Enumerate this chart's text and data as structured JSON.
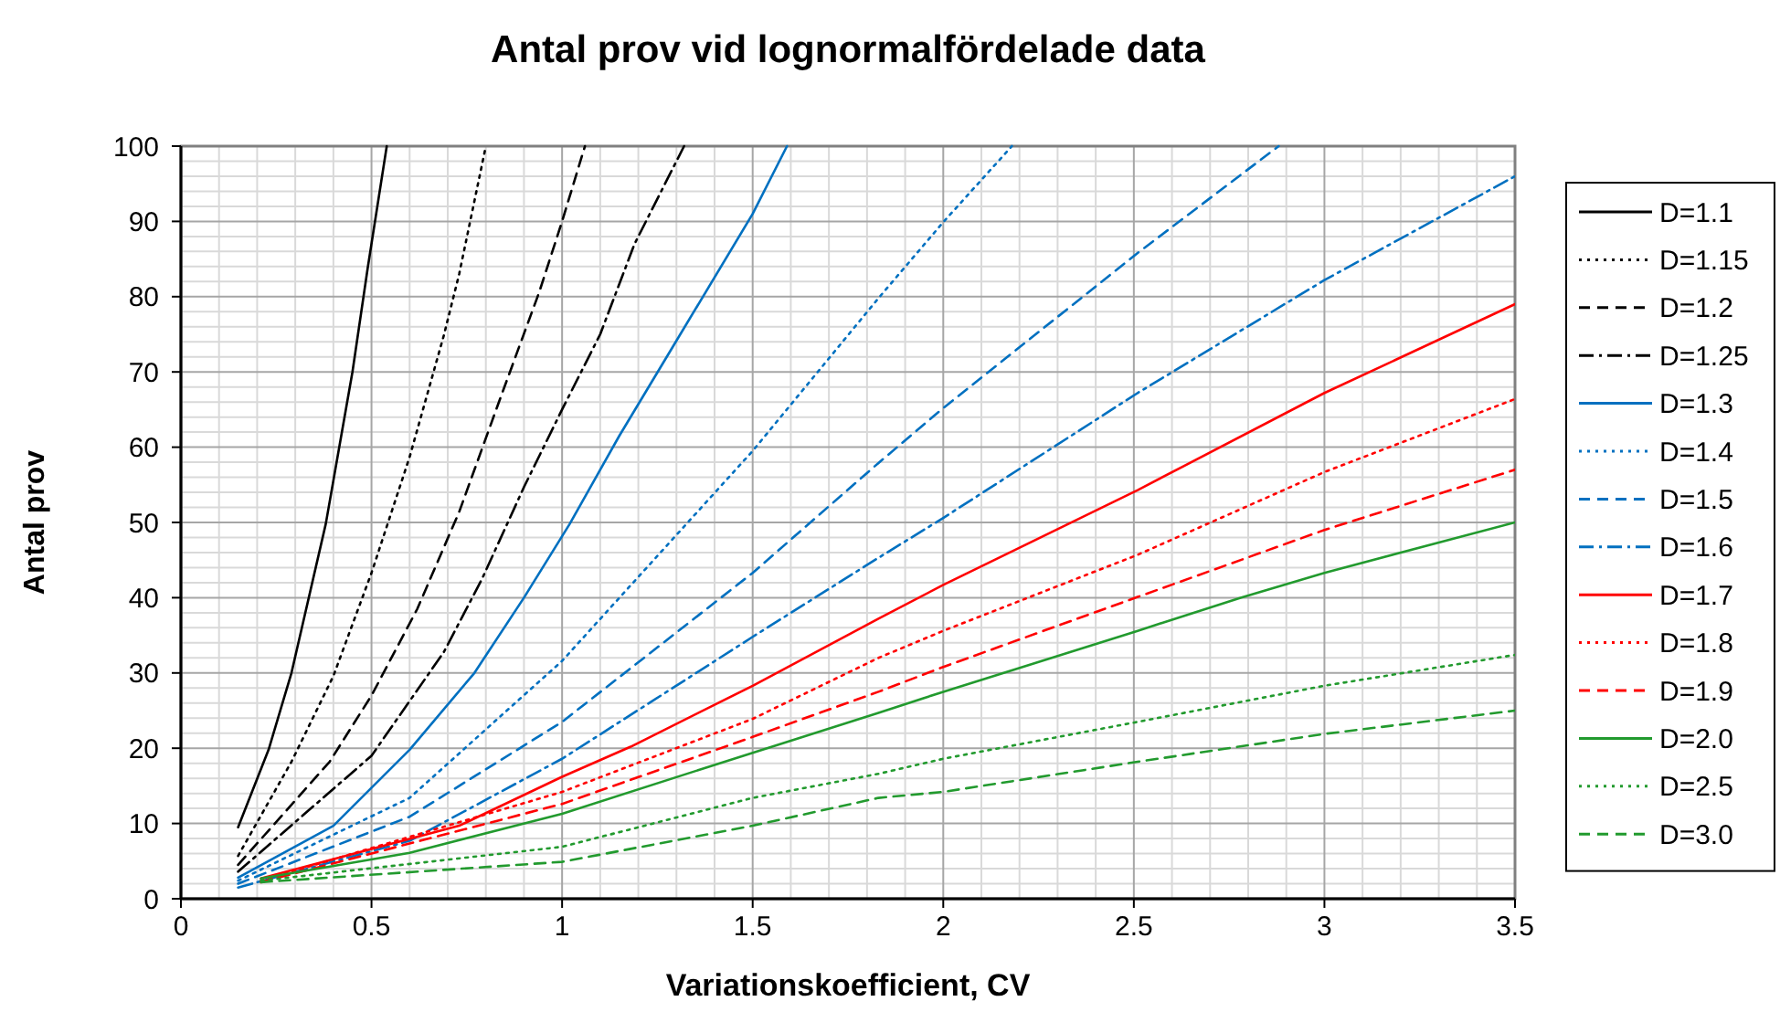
{
  "chart_data": {
    "type": "line",
    "title": "Antal prov vid lognormalfördelade data",
    "xlabel": "Variationskoefficient, CV",
    "ylabel": "Antal prov",
    "xlim": [
      0,
      3.5
    ],
    "ylim": [
      0,
      100
    ],
    "xticks": [
      0,
      0.5,
      1,
      1.5,
      2,
      2.5,
      3,
      3.5
    ],
    "yticks": [
      0,
      10,
      20,
      30,
      40,
      50,
      60,
      70,
      80,
      90,
      100
    ],
    "grid": true,
    "legend": "right",
    "series": [
      {
        "name": "D=1.1",
        "color": "#000000",
        "line_style": "solid",
        "x": [
          0.15,
          0.23,
          0.29,
          0.38,
          0.45,
          0.49,
          0.54
        ],
        "values": [
          9.5,
          19.8,
          30,
          49.8,
          70,
          83.8,
          100
        ]
      },
      {
        "name": "D=1.15",
        "color": "#000000",
        "line_style": "dotted",
        "x": [
          0.15,
          0.29,
          0.4,
          0.5,
          0.6,
          0.69,
          0.73,
          0.8
        ],
        "values": [
          5.7,
          18.2,
          29.6,
          43.3,
          58.7,
          74.9,
          83,
          100
        ]
      },
      {
        "name": "D=1.2",
        "color": "#000000",
        "line_style": "dashed",
        "x": [
          0.15,
          0.39,
          0.5,
          0.62,
          0.73,
          0.84,
          0.94,
          1,
          1.06
        ],
        "values": [
          4.5,
          18.2,
          27,
          38.5,
          51.4,
          66.8,
          80.6,
          90,
          100
        ]
      },
      {
        "name": "D=1.25",
        "color": "#000000",
        "line_style": "dashdot",
        "x": [
          0.15,
          0.5,
          0.69,
          0.79,
          0.9,
          1,
          1.1,
          1.19,
          1.32
        ],
        "values": [
          3.6,
          19,
          32.8,
          42.5,
          54.7,
          65,
          75,
          87,
          100
        ]
      },
      {
        "name": "D=1.3",
        "color": "#0070c0",
        "line_style": "solid",
        "x": [
          0.15,
          0.4,
          0.6,
          0.77,
          0.9,
          1.02,
          1.15,
          1.29,
          1.5,
          1.59
        ],
        "values": [
          2.8,
          9.7,
          19.8,
          30,
          40,
          49.8,
          61.5,
          73.3,
          91,
          100
        ]
      },
      {
        "name": "D=1.4",
        "color": "#0070c0",
        "line_style": "dotted",
        "x": [
          0.15,
          0.6,
          1,
          1.5,
          1.83,
          2,
          2.18
        ],
        "values": [
          2.4,
          13.4,
          31.6,
          59.5,
          79.8,
          89.9,
          100
        ]
      },
      {
        "name": "D=1.5",
        "color": "#0070c0",
        "line_style": "dashed",
        "x": [
          0.15,
          0.6,
          1,
          1.5,
          1.83,
          2,
          2.51,
          2.88
        ],
        "values": [
          2,
          10.9,
          23.5,
          43.3,
          57.9,
          65.2,
          85.8,
          100
        ]
      },
      {
        "name": "D=1.6",
        "color": "#0070c0",
        "line_style": "dashdot",
        "x": [
          0.15,
          0.6,
          1,
          1.5,
          1.83,
          2,
          2.51,
          3,
          3.5
        ],
        "values": [
          1.5,
          7.7,
          18.6,
          34.8,
          45.3,
          50.6,
          67.2,
          82.2,
          96
        ]
      },
      {
        "name": "D=1.7",
        "color": "#ff0000",
        "line_style": "solid",
        "x": [
          0.21,
          0.73,
          1,
          1.18,
          1.5,
          1.83,
          2,
          2.51,
          3,
          3.5
        ],
        "values": [
          2.7,
          9.7,
          16.2,
          20.2,
          28.3,
          37.2,
          41.7,
          54.3,
          67.2,
          79
        ]
      },
      {
        "name": "D=1.8",
        "color": "#ff0000",
        "line_style": "dotted",
        "x": [
          0.21,
          1,
          1.5,
          1.83,
          2,
          2.51,
          3,
          3.5
        ],
        "values": [
          2.4,
          14.2,
          23.9,
          32,
          35.6,
          45.7,
          56.7,
          66.4
        ]
      },
      {
        "name": "D=1.9",
        "color": "#ff0000",
        "line_style": "dashed",
        "x": [
          0.21,
          1,
          1.5,
          1.83,
          2,
          2.51,
          3,
          3.5
        ],
        "values": [
          2.2,
          12.6,
          21.5,
          27.5,
          30.8,
          40.1,
          49,
          57
        ]
      },
      {
        "name": "D=2.0",
        "color": "#229a2e",
        "line_style": "solid",
        "x": [
          0.21,
          0.6,
          1,
          1.5,
          1.83,
          2,
          2.51,
          2.78,
          3,
          3.5
        ],
        "values": [
          2.7,
          6.1,
          11.3,
          19.4,
          24.7,
          27.5,
          35.6,
          40,
          43.3,
          50
        ]
      },
      {
        "name": "D=2.5",
        "color": "#229a2e",
        "line_style": "dotted",
        "x": [
          0.21,
          1,
          1.5,
          1.83,
          2,
          2.51,
          3,
          3.5
        ],
        "values": [
          2.4,
          6.9,
          13.4,
          16.6,
          18.6,
          23.5,
          28.3,
          32.4
        ]
      },
      {
        "name": "D=3.0",
        "color": "#229a2e",
        "line_style": "dashed",
        "x": [
          0.21,
          1,
          1.5,
          1.83,
          2,
          2.51,
          3,
          3.5
        ],
        "values": [
          2.2,
          4.9,
          9.7,
          13.4,
          14.2,
          18.2,
          21.9,
          25
        ]
      }
    ]
  }
}
